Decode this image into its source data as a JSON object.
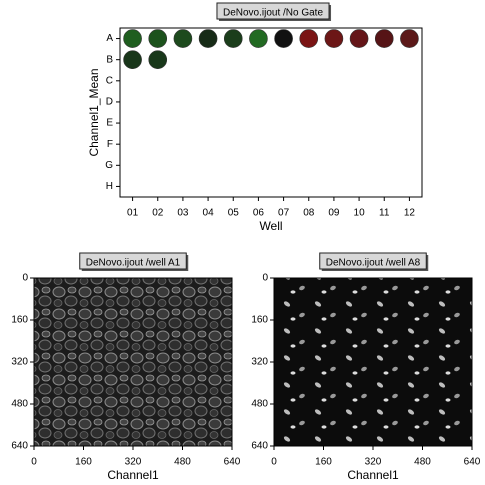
{
  "chart_data": [
    {
      "type": "plate",
      "title": "DeNovo.ijout /No Gate",
      "xlabel": "Well",
      "ylabel": "Channel1_Mean",
      "columns": [
        "01",
        "02",
        "03",
        "04",
        "05",
        "06",
        "07",
        "08",
        "09",
        "10",
        "11",
        "12"
      ],
      "rows": [
        {
          "label": "A",
          "colors": [
            "#1f5e1f",
            "#1c521c",
            "#1d4a1d",
            "#172b17",
            "#1b3d1b",
            "#226a22",
            "#111111",
            "#7a1414",
            "#6c1616",
            "#641518",
            "#561416",
            "#5c1919"
          ]
        },
        {
          "label": "B",
          "colors": [
            "#19361a",
            "#19381a"
          ]
        },
        {
          "label": "C",
          "colors": []
        },
        {
          "label": "D",
          "colors": []
        },
        {
          "label": "E",
          "colors": []
        },
        {
          "label": "F",
          "colors": []
        },
        {
          "label": "G",
          "colors": []
        },
        {
          "label": "H",
          "colors": []
        }
      ]
    },
    {
      "type": "image",
      "title": "DeNovo.ijout /well A1",
      "xlabel": "Channel1",
      "xlim": [
        0,
        640
      ],
      "xticks": [
        0,
        160,
        320,
        480,
        640
      ],
      "ylim": [
        0,
        640
      ],
      "yticks": [
        0,
        160,
        320,
        480,
        640
      ],
      "y_inverted": true
    },
    {
      "type": "image",
      "title": "DeNovo.ijout /well A8",
      "xlabel": "Channel1",
      "xlim": [
        0,
        640
      ],
      "xticks": [
        0,
        160,
        320,
        480,
        640
      ],
      "ylim": [
        0,
        640
      ],
      "yticks": [
        0,
        160,
        320,
        480,
        640
      ],
      "y_inverted": true
    }
  ]
}
